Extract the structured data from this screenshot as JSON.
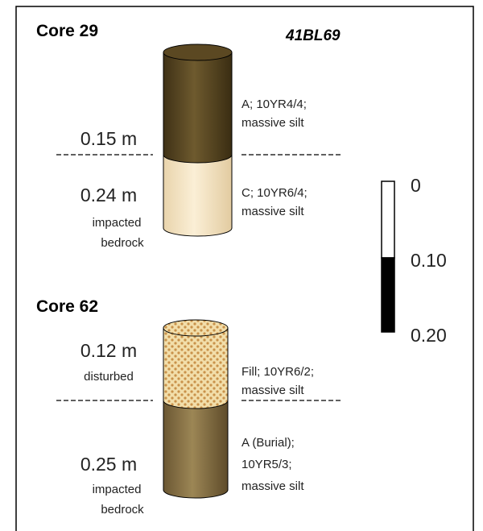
{
  "site": "41BL69",
  "scale": {
    "labels": [
      "0",
      "0.10",
      "0.20"
    ]
  },
  "cores": [
    {
      "title": "Core 29",
      "layers": [
        {
          "depth": "0.15 m",
          "description": [
            "A; 10YR4/4;",
            "massive silt"
          ]
        },
        {
          "depth": "0.24 m",
          "notes": [
            "impacted",
            "bedrock"
          ],
          "description": [
            "C; 10YR6/4;",
            "massive silt"
          ]
        }
      ]
    },
    {
      "title": "Core 62",
      "layers": [
        {
          "depth": "0.12 m",
          "notes": [
            "disturbed"
          ],
          "description": [
            "Fill; 10YR6/2;",
            "massive silt"
          ]
        },
        {
          "depth": "0.25 m",
          "notes": [
            "impacted",
            "bedrock"
          ],
          "description": [
            "A (Burial);",
            "10YR5/3;",
            "massive silt"
          ]
        }
      ]
    }
  ]
}
